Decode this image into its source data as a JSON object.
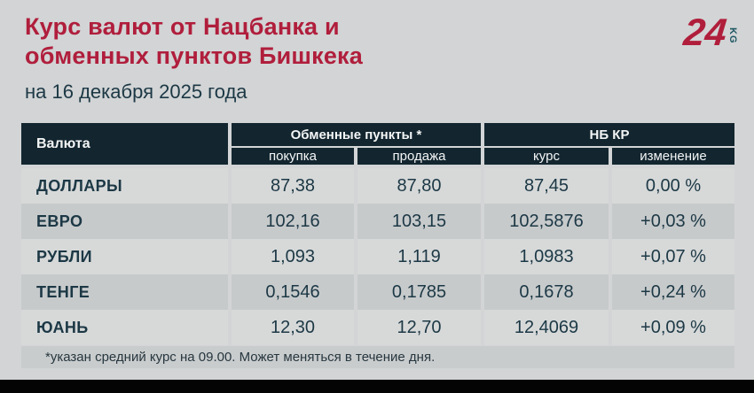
{
  "ui": {
    "header": {
      "title_line1": "Курс валют от Нацбанка и",
      "title_line2": "обменных пунктов Бишкека",
      "subtitle": "на 16 декабря 2025 года",
      "logo_number": "24",
      "logo_suffix": "KG"
    },
    "colors": {
      "page_bg": "#d2d4d5",
      "accent_red": "#b01e3c",
      "navy_text": "#1c3845",
      "header_cell_bg": "#132630",
      "row_light": "#d7d9d9",
      "row_dark": "#c7cacb",
      "footnote_bg": "#c9cccd",
      "bottom_bar": "#040404",
      "logo_teal": "#1d5662"
    }
  },
  "chart_data": {
    "type": "table",
    "title": "Курс валют от Нацбанка и обменных пунктов Бишкека",
    "subtitle": "на 16 декабря 2025 года",
    "first_column": "Валюта",
    "column_groups": [
      {
        "label": "Обменные пункты *",
        "columns": [
          "покупка",
          "продажа"
        ]
      },
      {
        "label": "НБ КР",
        "columns": [
          "курс",
          "изменение"
        ]
      }
    ],
    "rows": [
      {
        "currency": "ДОЛЛАРЫ",
        "buy": "87,38",
        "sell": "87,80",
        "rate": "87,45",
        "change": "0,00 %"
      },
      {
        "currency": "ЕВРО",
        "buy": "102,16",
        "sell": "103,15",
        "rate": "102,5876",
        "change": "+0,03 %"
      },
      {
        "currency": "РУБЛИ",
        "buy": "1,093",
        "sell": "1,119",
        "rate": "1,0983",
        "change": "+0,07 %"
      },
      {
        "currency": "ТЕНГЕ",
        "buy": "0,1546",
        "sell": "0,1785",
        "rate": "0,1678",
        "change": "+0,24 %"
      },
      {
        "currency": "ЮАНЬ",
        "buy": "12,30",
        "sell": "12,70",
        "rate": "12,4069",
        "change": "+0,09 %"
      }
    ],
    "footnote": "*указан средний курс на 09.00. Может меняться в течение дня."
  }
}
